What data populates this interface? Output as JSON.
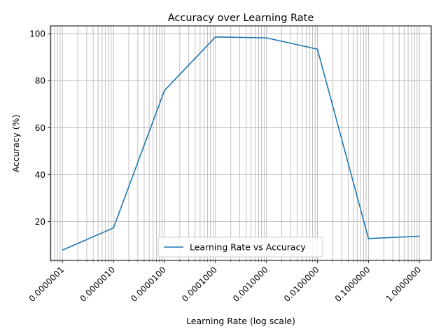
{
  "chart_data": {
    "type": "line",
    "title": "Accuracy over Learning Rate",
    "xlabel": "Learning Rate (log scale)",
    "ylabel": "Accuracy (%)",
    "xscale": "log",
    "x_ticks": [
      1e-07,
      1e-06,
      1e-05,
      0.0001,
      0.001,
      0.01,
      0.1,
      1
    ],
    "x_tick_labels": [
      "0.0000001",
      "0.0000010",
      "0.0000100",
      "0.0001000",
      "0.0010000",
      "0.0100000",
      "0.1000000",
      "1.0000000"
    ],
    "y_ticks": [
      20,
      40,
      60,
      80,
      100
    ],
    "y_tick_labels": [
      "20",
      "40",
      "60",
      "80",
      "100"
    ],
    "xlim": [
      5.8e-08,
      1.7
    ],
    "ylim": [
      3.5,
      103.3
    ],
    "grid": true,
    "legend_position": "lower-center",
    "series": [
      {
        "name": "Learning Rate vs Accuracy",
        "color": "#1f77b4",
        "x": [
          1e-07,
          1e-06,
          1e-05,
          0.0001,
          0.001,
          0.01,
          0.1,
          1
        ],
        "y": [
          7.9,
          17.3,
          75.8,
          98.6,
          98.2,
          93.4,
          12.8,
          13.8
        ]
      }
    ]
  }
}
